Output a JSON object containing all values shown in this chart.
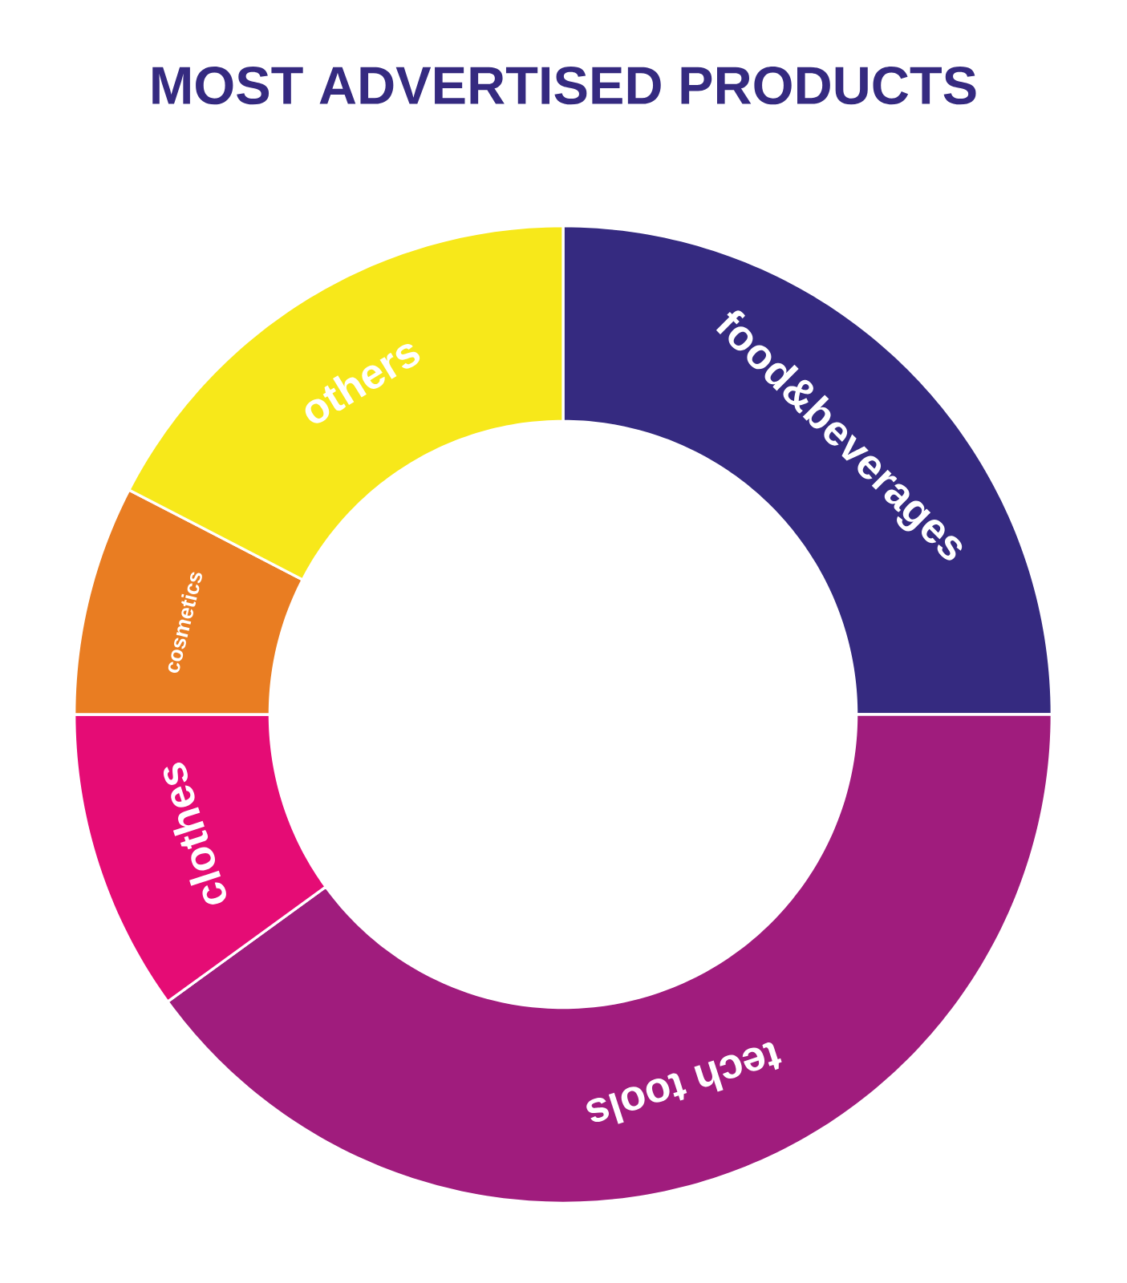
{
  "chart_data": {
    "type": "donut",
    "title": "MOST ADVERTISED PRODUCTS",
    "categories": [
      "food&beverages",
      "tech tools",
      "clothes",
      "cosmetics",
      "others"
    ],
    "values": [
      25,
      40,
      10,
      7.6,
      17.4
    ],
    "colors": [
      "#352a80",
      "#a01c7d",
      "#e50c75",
      "#e97d22",
      "#f7e81a"
    ]
  }
}
